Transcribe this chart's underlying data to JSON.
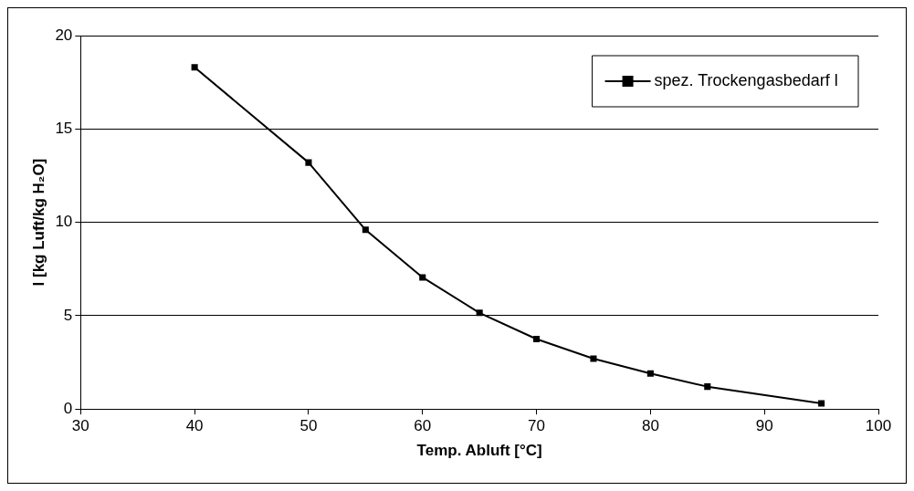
{
  "chart_data": {
    "type": "line",
    "xlabel": "Temp. Abluft [°C]",
    "ylabel": "l [kg Luft/kg H₂O]",
    "x": [
      40,
      50,
      55,
      60,
      65,
      70,
      75,
      80,
      85,
      95
    ],
    "series": [
      {
        "name": "spez. Trockengasbedarf l",
        "color": "#000000",
        "values": [
          18.3,
          13.2,
          9.6,
          7.05,
          5.15,
          3.75,
          2.7,
          1.9,
          1.2,
          0.3
        ]
      }
    ],
    "xlim": [
      30,
      100
    ],
    "xticks": [
      30,
      40,
      50,
      60,
      70,
      80,
      90,
      100
    ],
    "ylim": [
      0,
      20
    ],
    "yticks": [
      0,
      5,
      10,
      15,
      20
    ],
    "grid": "y",
    "legend": "top right",
    "marker": "square",
    "line_style": "solid"
  }
}
